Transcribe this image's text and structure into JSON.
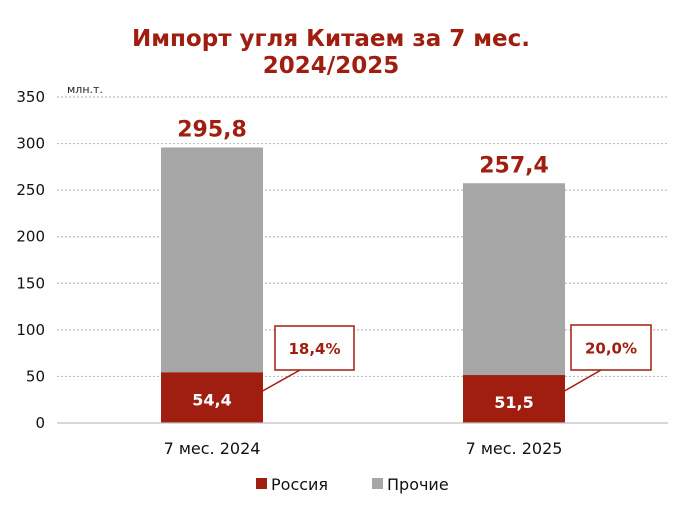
{
  "chart_data": {
    "type": "bar",
    "stacked": true,
    "title": [
      "Импорт угля Китаем за 7 мес.",
      "2024/2025"
    ],
    "unit_label": "млн.т.",
    "categories": [
      "7 мес. 2024",
      "7 мес. 2025"
    ],
    "series": [
      {
        "name": "Россия",
        "values": [
          54.4,
          51.5
        ],
        "labels": [
          "54,4",
          "51,5"
        ],
        "color": "#A01E10"
      },
      {
        "name": "Прочие",
        "values": [
          241.4,
          205.9
        ],
        "color": "#A6A6A6"
      }
    ],
    "totals": [
      295.8,
      257.4
    ],
    "total_labels": [
      "295,8",
      "257,4"
    ],
    "share_labels": [
      "18,4%",
      "20,0%"
    ],
    "ylim": [
      0,
      350
    ],
    "yticks": [
      0,
      50,
      100,
      150,
      200,
      250,
      300,
      350
    ],
    "grid": true,
    "legend_position": "bottom"
  }
}
